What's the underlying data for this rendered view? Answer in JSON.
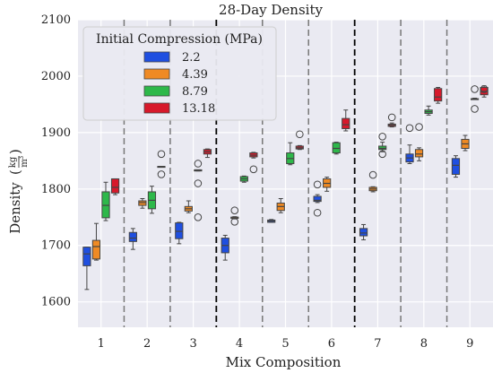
{
  "chart_data": {
    "type": "box",
    "title": "28-Day Density",
    "xlabel": "Mix Composition",
    "ylabel": "Density",
    "ylabel_unit_num": "kg",
    "ylabel_unit_den": "m",
    "ylabel_unit_exp": "3",
    "ylim": [
      1555,
      2100
    ],
    "yticks": [
      1600,
      1700,
      1800,
      1900,
      2000,
      2100
    ],
    "categories": [
      "1",
      "2",
      "3",
      "4",
      "5",
      "6",
      "7",
      "8",
      "9"
    ],
    "legend": {
      "title": "Initial Compression (MPa)",
      "placement": "upper-left",
      "entries": [
        "2.2",
        "4.39",
        "8.79",
        "13.18"
      ]
    },
    "series": [
      {
        "name": "2.2",
        "color": "#1f4fe0",
        "boxes": [
          {
            "whislo": 1622,
            "q1": 1664,
            "med": 1685,
            "q3": 1697,
            "whishi": 1697,
            "fliers": []
          },
          {
            "whislo": 1693,
            "q1": 1707,
            "med": 1713,
            "q3": 1723,
            "whishi": 1730,
            "fliers": []
          },
          {
            "whislo": 1703,
            "q1": 1712,
            "med": 1725,
            "q3": 1740,
            "whishi": 1741,
            "fliers": []
          },
          {
            "whislo": 1674,
            "q1": 1687,
            "med": 1700,
            "q3": 1713,
            "whishi": 1718,
            "fliers": []
          },
          {
            "whislo": 1741,
            "q1": 1741,
            "med": 1743,
            "q3": 1745,
            "whishi": 1746,
            "fliers": []
          },
          {
            "whislo": 1776,
            "q1": 1778,
            "med": 1780,
            "q3": 1787,
            "whishi": 1790,
            "fliers": [
              1758,
              1808
            ]
          },
          {
            "whislo": 1710,
            "q1": 1717,
            "med": 1722,
            "q3": 1730,
            "whishi": 1737,
            "fliers": []
          },
          {
            "whislo": 1845,
            "q1": 1848,
            "med": 1855,
            "q3": 1862,
            "whishi": 1878,
            "fliers": [
              1908
            ]
          },
          {
            "whislo": 1821,
            "q1": 1826,
            "med": 1842,
            "q3": 1854,
            "whishi": 1859,
            "fliers": []
          }
        ]
      },
      {
        "name": "4.39",
        "color": "#ef8a24",
        "boxes": [
          {
            "whislo": 1674,
            "q1": 1676,
            "med": 1698,
            "q3": 1709,
            "whishi": 1739,
            "fliers": []
          },
          {
            "whislo": 1766,
            "q1": 1771,
            "med": 1776,
            "q3": 1779,
            "whishi": 1783,
            "fliers": []
          },
          {
            "whislo": 1758,
            "q1": 1761,
            "med": 1765,
            "q3": 1769,
            "whishi": 1779,
            "fliers": []
          },
          {
            "whislo": 1747,
            "q1": 1748,
            "med": 1750,
            "q3": 1750,
            "whishi": 1751,
            "fliers": [
              1742,
              1762
            ]
          },
          {
            "whislo": 1758,
            "q1": 1762,
            "med": 1769,
            "q3": 1775,
            "whishi": 1783,
            "fliers": []
          },
          {
            "whislo": 1796,
            "q1": 1803,
            "med": 1810,
            "q3": 1818,
            "whishi": 1821,
            "fliers": []
          },
          {
            "whislo": 1795,
            "q1": 1797,
            "med": 1800,
            "q3": 1803,
            "whishi": 1804,
            "fliers": [
              1825
            ]
          },
          {
            "whislo": 1850,
            "q1": 1857,
            "med": 1862,
            "q3": 1870,
            "whishi": 1873,
            "fliers": [
              1910
            ]
          },
          {
            "whislo": 1868,
            "q1": 1872,
            "med": 1880,
            "q3": 1888,
            "whishi": 1895,
            "fliers": []
          }
        ]
      },
      {
        "name": "8.79",
        "color": "#2eb84a",
        "boxes": [
          {
            "whislo": 1744,
            "q1": 1749,
            "med": 1771,
            "q3": 1795,
            "whishi": 1812,
            "fliers": []
          },
          {
            "whislo": 1757,
            "q1": 1765,
            "med": 1780,
            "q3": 1795,
            "whishi": 1805,
            "fliers": []
          },
          {
            "whislo": 1832,
            "q1": 1832,
            "med": 1833,
            "q3": 1834,
            "whishi": 1834,
            "fliers": [
              1810,
              1845,
              1750
            ]
          },
          {
            "whislo": 1812,
            "q1": 1814,
            "med": 1818,
            "q3": 1822,
            "whishi": 1823,
            "fliers": []
          },
          {
            "whislo": 1843,
            "q1": 1845,
            "med": 1854,
            "q3": 1864,
            "whishi": 1882,
            "fliers": []
          },
          {
            "whislo": 1862,
            "q1": 1864,
            "med": 1872,
            "q3": 1882,
            "whishi": 1883,
            "fliers": []
          },
          {
            "whislo": 1866,
            "q1": 1870,
            "med": 1872,
            "q3": 1876,
            "whishi": 1883,
            "fliers": [
              1862,
              1893
            ]
          },
          {
            "whislo": 1931,
            "q1": 1934,
            "med": 1937,
            "q3": 1940,
            "whishi": 1947,
            "fliers": []
          },
          {
            "whislo": 1959,
            "q1": 1959,
            "med": 1960,
            "q3": 1960,
            "whishi": 1961,
            "fliers": [
              1942,
              1977
            ]
          }
        ]
      },
      {
        "name": "13.18",
        "color": "#d7192b",
        "boxes": [
          {
            "whislo": 1790,
            "q1": 1793,
            "med": 1803,
            "q3": 1818,
            "whishi": 1818,
            "fliers": []
          },
          {
            "whislo": 1840,
            "q1": 1840,
            "med": 1840,
            "q3": 1840,
            "whishi": 1840,
            "fliers": [
              1826,
              1862
            ]
          },
          {
            "whislo": 1856,
            "q1": 1862,
            "med": 1866,
            "q3": 1870,
            "whishi": 1871,
            "fliers": []
          },
          {
            "whislo": 1855,
            "q1": 1857,
            "med": 1860,
            "q3": 1864,
            "whishi": 1865,
            "fliers": [
              1835
            ]
          },
          {
            "whislo": 1870,
            "q1": 1871,
            "med": 1873,
            "q3": 1876,
            "whishi": 1877,
            "fliers": [
              1897
            ]
          },
          {
            "whislo": 1903,
            "q1": 1907,
            "med": 1914,
            "q3": 1925,
            "whishi": 1940,
            "fliers": []
          },
          {
            "whislo": 1910,
            "q1": 1911,
            "med": 1913,
            "q3": 1915,
            "whishi": 1917,
            "fliers": [
              1927
            ]
          },
          {
            "whislo": 1952,
            "q1": 1956,
            "med": 1963,
            "q3": 1978,
            "whishi": 1980,
            "fliers": []
          },
          {
            "whislo": 1963,
            "q1": 1967,
            "med": 1973,
            "q3": 1980,
            "whishi": 1983,
            "fliers": [
              1977
            ]
          }
        ]
      }
    ],
    "separators": [
      {
        "after": "1",
        "style": "dashed-gray"
      },
      {
        "after": "2",
        "style": "dashed-gray"
      },
      {
        "after": "3",
        "style": "dashed-black"
      },
      {
        "after": "4",
        "style": "dashed-gray"
      },
      {
        "after": "5",
        "style": "dashed-gray"
      },
      {
        "after": "6",
        "style": "dashed-black"
      },
      {
        "after": "7",
        "style": "dashed-gray"
      },
      {
        "after": "8",
        "style": "dashed-gray"
      }
    ],
    "grid": true,
    "background": "#eaeaf2"
  }
}
